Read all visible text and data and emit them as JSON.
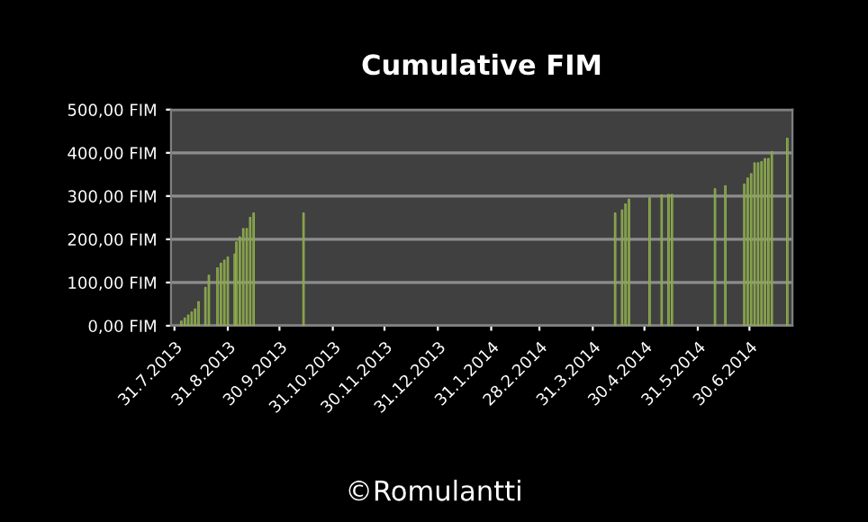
{
  "chart_data": {
    "type": "bar",
    "title": "Cumulative FIM",
    "x": [
      "2013-08-04",
      "2013-08-06",
      "2013-08-08",
      "2013-08-10",
      "2013-08-12",
      "2013-08-14",
      "2013-08-18",
      "2013-08-20",
      "2013-08-25",
      "2013-08-27",
      "2013-08-29",
      "2013-08-31",
      "2013-09-04",
      "2013-09-05",
      "2013-09-07",
      "2013-09-09",
      "2013-09-11",
      "2013-09-13",
      "2013-09-15",
      "2013-10-14",
      "2014-04-13",
      "2014-04-17",
      "2014-04-19",
      "2014-04-21",
      "2014-05-03",
      "2014-05-10",
      "2014-05-14",
      "2014-05-16",
      "2014-06-10",
      "2014-06-16",
      "2014-06-27",
      "2014-06-29",
      "2014-07-01",
      "2014-07-03",
      "2014-07-05",
      "2014-07-07",
      "2014-07-09",
      "2014-07-11",
      "2014-07-13",
      "2014-07-22"
    ],
    "values": [
      11,
      18,
      25,
      32,
      39,
      56,
      89,
      117,
      134,
      145,
      152,
      159,
      166,
      194,
      206,
      225,
      225,
      251,
      261,
      261,
      261,
      268,
      282,
      293,
      296,
      303,
      304,
      304,
      317,
      324,
      328,
      342,
      352,
      377,
      377,
      380,
      387,
      387,
      403,
      434
    ],
    "color": "#77933c",
    "xlim": [
      "2013-07-29",
      "2014-07-25"
    ],
    "xticks": [
      {
        "value": "2013-07-31",
        "label": "31.7.2013"
      },
      {
        "value": "2013-08-31",
        "label": "31.8.2013"
      },
      {
        "value": "2013-09-30",
        "label": "30.9.2013"
      },
      {
        "value": "2013-10-31",
        "label": "31.10.2013"
      },
      {
        "value": "2013-11-30",
        "label": "30.11.2013"
      },
      {
        "value": "2013-12-31",
        "label": "31.12.2013"
      },
      {
        "value": "2014-01-31",
        "label": "31.1.2014"
      },
      {
        "value": "2014-02-28",
        "label": "28.2.2014"
      },
      {
        "value": "2014-03-31",
        "label": "31.3.2014"
      },
      {
        "value": "2014-04-30",
        "label": "30.4.2014"
      },
      {
        "value": "2014-05-31",
        "label": "31.5.2014"
      },
      {
        "value": "2014-06-30",
        "label": "30.6.2014"
      }
    ],
    "ylim": [
      0,
      500
    ],
    "yticks": [
      {
        "value": 0,
        "label": "0,00 FIM"
      },
      {
        "value": 100,
        "label": "100,00 FIM"
      },
      {
        "value": 200,
        "label": "200,00 FIM"
      },
      {
        "value": 300,
        "label": "300,00 FIM"
      },
      {
        "value": 400,
        "label": "400,00 FIM"
      },
      {
        "value": 500,
        "label": "500,00 FIM"
      }
    ],
    "grid": "y",
    "legend": false,
    "annotations": [
      "©Romulantti"
    ]
  }
}
